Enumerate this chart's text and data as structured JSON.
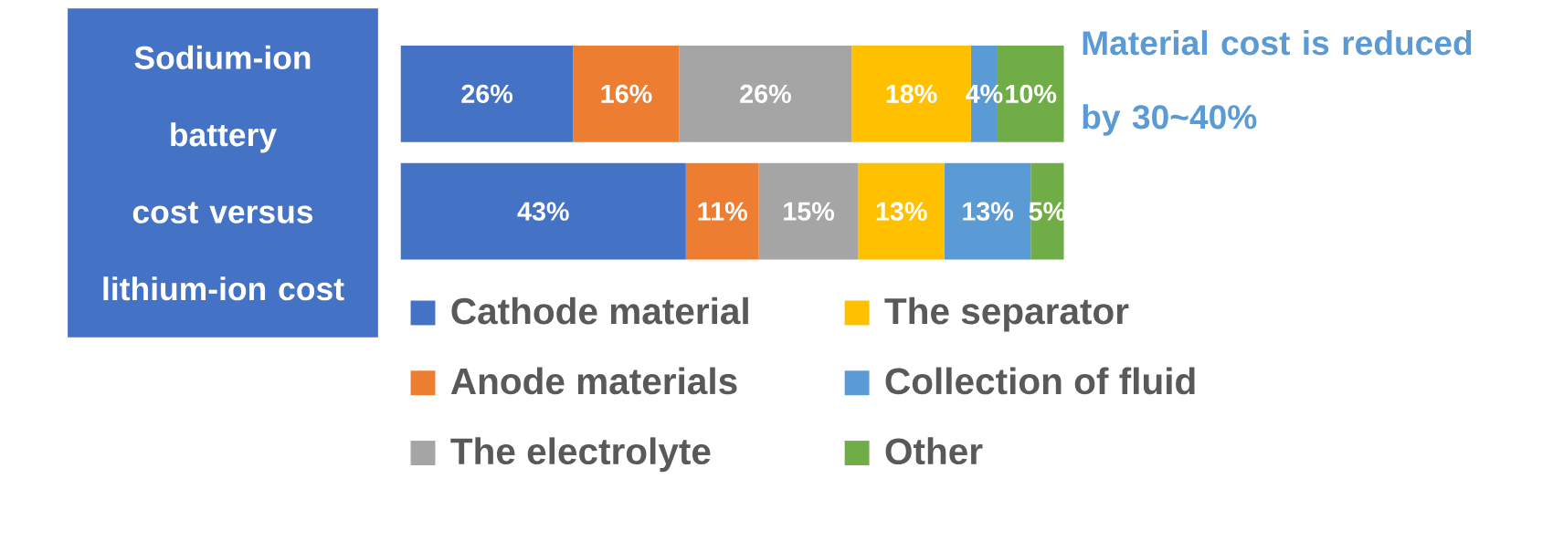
{
  "chart_data": {
    "type": "bar",
    "orientation": "horizontal",
    "stacked": true,
    "title": "Sodium-ion battery cost versus lithium-ion cost",
    "annotations": [
      "Material cost is reduced by 30~40%"
    ],
    "categories": [
      null,
      null
    ],
    "legend": "bottom",
    "series": [
      {
        "name": "Cathode material",
        "color": "#4472c4",
        "values": [
          26,
          43
        ],
        "value_labels": [
          "26%",
          "43%"
        ]
      },
      {
        "name": "Anode materials",
        "color": "#ed7d31",
        "values": [
          16,
          11
        ],
        "value_labels": [
          "16%",
          "11%"
        ]
      },
      {
        "name": "The electrolyte",
        "color": "#a5a5a5",
        "values": [
          26,
          15
        ],
        "value_labels": [
          "26%",
          "15%"
        ]
      },
      {
        "name": "The separator",
        "color": "#ffc000",
        "values": [
          18,
          13
        ],
        "value_labels": [
          "18%",
          "13%"
        ]
      },
      {
        "name": "Collection of fluid",
        "color": "#5b9bd5",
        "values": [
          4,
          13
        ],
        "value_labels": [
          "4%",
          "13%"
        ]
      },
      {
        "name": "Other",
        "color": "#70ad47",
        "values": [
          10,
          5
        ],
        "value_labels": [
          "10%",
          "5%"
        ]
      }
    ]
  }
}
